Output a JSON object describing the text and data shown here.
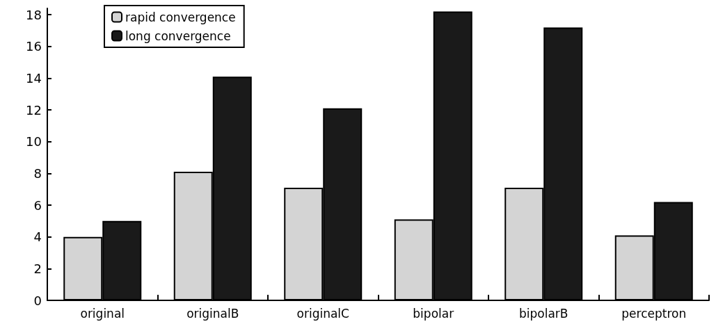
{
  "chart_data": {
    "type": "bar",
    "categories": [
      "original",
      "originalB",
      "originalC",
      "bipolar",
      "bipolarB",
      "perceptron"
    ],
    "series": [
      {
        "name": "rapid convergence",
        "color": "#d4d4d4",
        "values": [
          4.0,
          8.1,
          7.1,
          5.1,
          7.1,
          4.1
        ]
      },
      {
        "name": "long convergence",
        "color": "#1a1a1a",
        "values": [
          5.0,
          14.1,
          12.1,
          18.2,
          17.2,
          6.2
        ]
      }
    ],
    "ylim": [
      0,
      18.4
    ],
    "yticks": [
      0,
      2,
      4,
      6,
      8,
      10,
      12,
      14,
      16,
      18
    ],
    "grid": false,
    "legend": "top left"
  }
}
